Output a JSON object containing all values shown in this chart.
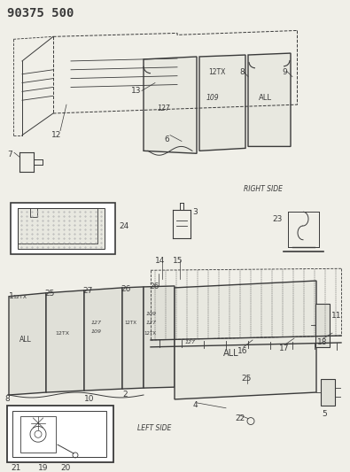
{
  "title": "90375 500",
  "right_side_label": "RIGHT SIDE",
  "left_side_label": "LEFT SIDE",
  "bg_color": "#f0efe8",
  "line_color": "#3a3a3a",
  "text_color": "#3a3a3a",
  "title_fontsize": 10,
  "partnum_fontsize": 6.5,
  "small_label_fontsize": 5.5
}
